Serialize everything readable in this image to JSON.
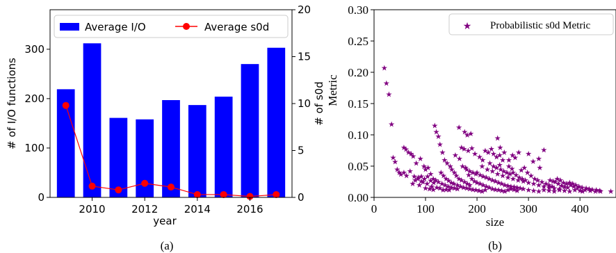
{
  "colors": {
    "bar": "#0000ff",
    "line": "#ff0000",
    "scatter": "#800080",
    "axis": "#000000"
  },
  "chart_data": [
    {
      "type": "bar",
      "panel_caption": "(a)",
      "xlabel": "year",
      "ylabel": "# of I/O functions",
      "y2label": "# of s0d",
      "categories": [
        2009,
        2010,
        2011,
        2012,
        2013,
        2014,
        2015,
        2016,
        2017
      ],
      "x_ticks": [
        "2010",
        "2012",
        "2014",
        "2016"
      ],
      "y_ticks": [
        "0",
        "100",
        "200",
        "300"
      ],
      "y2_ticks": [
        "0",
        "5",
        "10",
        "15",
        "20"
      ],
      "ylim": [
        0,
        380
      ],
      "y2lim": [
        0,
        20
      ],
      "legend_position": "top",
      "series": [
        {
          "name": "Average I/O",
          "type": "bar",
          "axis": "left",
          "values": [
            219,
            312,
            161,
            158,
            197,
            187,
            204,
            270,
            303
          ]
        },
        {
          "name": "Average s0d",
          "type": "line",
          "axis": "right",
          "values": [
            9.8,
            1.2,
            0.8,
            1.5,
            1.1,
            0.3,
            0.3,
            0.1,
            0.3
          ]
        }
      ]
    },
    {
      "type": "scatter",
      "panel_caption": "(b)",
      "xlabel": "size",
      "ylabel": "Metric",
      "xlim": [
        0,
        470
      ],
      "ylim": [
        0,
        0.3
      ],
      "x_ticks": [
        "0",
        "100",
        "200",
        "300",
        "400"
      ],
      "y_ticks": [
        "0.00",
        "0.05",
        "0.10",
        "0.15",
        "0.20",
        "0.25",
        "0.30"
      ],
      "legend_position": "top-right",
      "series": [
        {
          "name": "Probabilistic s0d Metric",
          "points": [
            [
              20,
              0.207
            ],
            [
              24,
              0.183
            ],
            [
              29,
              0.165
            ],
            [
              34,
              0.117
            ],
            [
              37,
              0.064
            ],
            [
              41,
              0.057
            ],
            [
              45,
              0.045
            ],
            [
              49,
              0.04
            ],
            [
              52,
              0.037
            ],
            [
              58,
              0.08
            ],
            [
              62,
              0.077
            ],
            [
              67,
              0.072
            ],
            [
              72,
              0.07
            ],
            [
              76,
              0.066
            ],
            [
              82,
              0.055
            ],
            [
              90,
              0.062
            ],
            [
              97,
              0.05
            ],
            [
              58,
              0.04
            ],
            [
              63,
              0.035
            ],
            [
              70,
              0.042
            ],
            [
              78,
              0.034
            ],
            [
              85,
              0.03
            ],
            [
              92,
              0.034
            ],
            [
              100,
              0.045
            ],
            [
              105,
              0.048
            ],
            [
              110,
              0.038
            ],
            [
              115,
              0.03
            ],
            [
              88,
              0.02
            ],
            [
              95,
              0.025
            ],
            [
              103,
              0.022
            ],
            [
              112,
              0.018
            ],
            [
              120,
              0.028
            ],
            [
              118,
              0.115
            ],
            [
              121,
              0.105
            ],
            [
              125,
              0.098
            ],
            [
              128,
              0.085
            ],
            [
              133,
              0.072
            ],
            [
              137,
              0.06
            ],
            [
              142,
              0.055
            ],
            [
              148,
              0.05
            ],
            [
              151,
              0.045
            ],
            [
              156,
              0.04
            ],
            [
              160,
              0.035
            ],
            [
              165,
              0.03
            ],
            [
              170,
              0.028
            ],
            [
              176,
              0.025
            ],
            [
              181,
              0.022
            ],
            [
              186,
              0.02
            ],
            [
              165,
              0.112
            ],
            [
              176,
              0.105
            ],
            [
              181,
              0.1
            ],
            [
              188,
              0.102
            ],
            [
              170,
              0.08
            ],
            [
              175,
              0.078
            ],
            [
              183,
              0.075
            ],
            [
              190,
              0.079
            ],
            [
              158,
              0.068
            ],
            [
              166,
              0.062
            ],
            [
              196,
              0.07
            ],
            [
              205,
              0.065
            ],
            [
              211,
              0.06
            ],
            [
              216,
              0.075
            ],
            [
              222,
              0.072
            ],
            [
              228,
              0.078
            ],
            [
              232,
              0.07
            ],
            [
              238,
              0.065
            ],
            [
              244,
              0.068
            ],
            [
              250,
              0.06
            ],
            [
              240,
              0.095
            ],
            [
              245,
              0.08
            ],
            [
              253,
              0.072
            ],
            [
              262,
              0.06
            ],
            [
              269,
              0.068
            ],
            [
              274,
              0.064
            ],
            [
              281,
              0.072
            ],
            [
              300,
              0.07
            ],
            [
              309,
              0.058
            ],
            [
              320,
              0.062
            ],
            [
              330,
              0.076
            ],
            [
              322,
              0.048
            ],
            [
              130,
              0.04
            ],
            [
              135,
              0.035
            ],
            [
              140,
              0.03
            ],
            [
              145,
              0.027
            ],
            [
              150,
              0.024
            ],
            [
              155,
              0.022
            ],
            [
              162,
              0.02
            ],
            [
              168,
              0.018
            ],
            [
              174,
              0.016
            ],
            [
              180,
              0.015
            ],
            [
              186,
              0.014
            ],
            [
              192,
              0.013
            ],
            [
              198,
              0.012
            ],
            [
              204,
              0.011
            ],
            [
              210,
              0.01
            ],
            [
              216,
              0.012
            ],
            [
              190,
              0.03
            ],
            [
              195,
              0.026
            ],
            [
              200,
              0.024
            ],
            [
              206,
              0.022
            ],
            [
              212,
              0.02
            ],
            [
              218,
              0.018
            ],
            [
              224,
              0.016
            ],
            [
              230,
              0.014
            ],
            [
              236,
              0.013
            ],
            [
              242,
              0.012
            ],
            [
              248,
              0.011
            ],
            [
              254,
              0.01
            ],
            [
              260,
              0.012
            ],
            [
              266,
              0.014
            ],
            [
              272,
              0.013
            ],
            [
              278,
              0.011
            ],
            [
              200,
              0.04
            ],
            [
              206,
              0.036
            ],
            [
              212,
              0.034
            ],
            [
              218,
              0.032
            ],
            [
              224,
              0.03
            ],
            [
              230,
              0.028
            ],
            [
              236,
              0.026
            ],
            [
              242,
              0.024
            ],
            [
              248,
              0.022
            ],
            [
              254,
              0.02
            ],
            [
              260,
              0.019
            ],
            [
              266,
              0.018
            ],
            [
              272,
              0.017
            ],
            [
              278,
              0.016
            ],
            [
              284,
              0.015
            ],
            [
              290,
              0.014
            ],
            [
              210,
              0.05
            ],
            [
              220,
              0.045
            ],
            [
              230,
              0.042
            ],
            [
              240,
              0.038
            ],
            [
              250,
              0.035
            ],
            [
              260,
              0.032
            ],
            [
              270,
              0.03
            ],
            [
              280,
              0.028
            ],
            [
              290,
              0.026
            ],
            [
              300,
              0.024
            ],
            [
              310,
              0.022
            ],
            [
              320,
              0.02
            ],
            [
              330,
              0.018
            ],
            [
              340,
              0.016
            ],
            [
              350,
              0.015
            ],
            [
              360,
              0.014
            ],
            [
              298,
              0.04
            ],
            [
              305,
              0.035
            ],
            [
              312,
              0.03
            ],
            [
              318,
              0.028
            ],
            [
              326,
              0.025
            ],
            [
              334,
              0.022
            ],
            [
              340,
              0.02
            ],
            [
              346,
              0.018
            ],
            [
              352,
              0.025
            ],
            [
              358,
              0.022
            ],
            [
              364,
              0.019
            ],
            [
              370,
              0.017
            ],
            [
              376,
              0.016
            ],
            [
              382,
              0.02
            ],
            [
              388,
              0.018
            ],
            [
              395,
              0.015
            ],
            [
              300,
              0.012
            ],
            [
              310,
              0.011
            ],
            [
              320,
              0.01
            ],
            [
              330,
              0.012
            ],
            [
              340,
              0.011
            ],
            [
              350,
              0.01
            ],
            [
              360,
              0.012
            ],
            [
              370,
              0.011
            ],
            [
              380,
              0.01
            ],
            [
              390,
              0.012
            ],
            [
              400,
              0.011
            ],
            [
              405,
              0.01
            ],
            [
              410,
              0.012
            ],
            [
              420,
              0.011
            ],
            [
              430,
              0.01
            ],
            [
              440,
              0.01
            ],
            [
              460,
              0.01
            ],
            [
              125,
              0.025
            ],
            [
              132,
              0.022
            ],
            [
              138,
              0.02
            ],
            [
              144,
              0.018
            ],
            [
              150,
              0.016
            ],
            [
              156,
              0.015
            ],
            [
              162,
              0.014
            ],
            [
              100,
              0.015
            ],
            [
              108,
              0.014
            ],
            [
              115,
              0.013
            ],
            [
              122,
              0.016
            ],
            [
              128,
              0.015
            ],
            [
              134,
              0.012
            ],
            [
              140,
              0.013
            ],
            [
              146,
              0.012
            ],
            [
              270,
              0.04
            ],
            [
              276,
              0.036
            ],
            [
              282,
              0.032
            ],
            [
              288,
              0.03
            ],
            [
              294,
              0.028
            ],
            [
              246,
              0.045
            ],
            [
              252,
              0.042
            ],
            [
              258,
              0.04
            ],
            [
              264,
              0.038
            ],
            [
              180,
              0.045
            ],
            [
              186,
              0.042
            ],
            [
              192,
              0.04
            ],
            [
              198,
              0.038
            ],
            [
              172,
              0.05
            ],
            [
              178,
              0.048
            ],
            [
              184,
              0.036
            ],
            [
              75,
              0.022
            ],
            [
              80,
              0.028
            ],
            [
              86,
              0.032
            ],
            [
              92,
              0.026
            ],
            [
              98,
              0.03
            ],
            [
              104,
              0.034
            ],
            [
              110,
              0.027
            ],
            [
              116,
              0.024
            ],
            [
              225,
              0.055
            ],
            [
              232,
              0.05
            ],
            [
              238,
              0.048
            ],
            [
              244,
              0.052
            ],
            [
              262,
              0.05
            ],
            [
              268,
              0.046
            ],
            [
              286,
              0.044
            ],
            [
              292,
              0.048
            ],
            [
              342,
              0.028
            ],
            [
              348,
              0.026
            ],
            [
              356,
              0.03
            ],
            [
              362,
              0.028
            ],
            [
              368,
              0.024
            ],
            [
              374,
              0.022
            ],
            [
              380,
              0.024
            ],
            [
              386,
              0.022
            ],
            [
              392,
              0.02
            ],
            [
              398,
              0.018
            ],
            [
              404,
              0.016
            ],
            [
              412,
              0.015
            ],
            [
              418,
              0.014
            ],
            [
              424,
              0.013
            ],
            [
              432,
              0.012
            ],
            [
              438,
              0.011
            ]
          ]
        }
      ]
    }
  ]
}
